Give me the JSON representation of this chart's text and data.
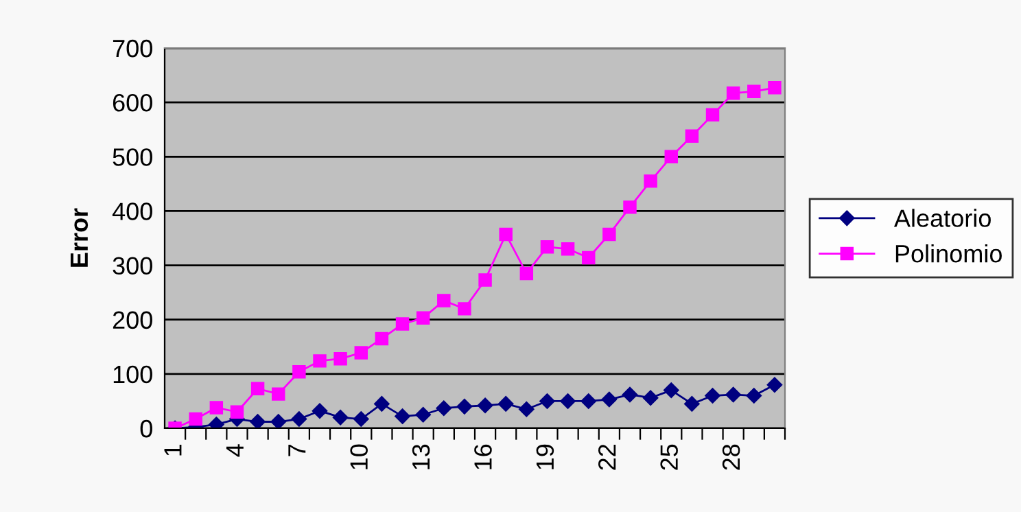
{
  "chart_data": {
    "type": "line",
    "ylabel": "Error",
    "categories": [
      "1",
      null,
      null,
      "4",
      null,
      null,
      "7",
      null,
      null,
      "10",
      null,
      null,
      "13",
      null,
      null,
      "16",
      null,
      null,
      "19",
      null,
      null,
      "22",
      null,
      null,
      "25",
      null,
      null,
      "28",
      null,
      null
    ],
    "series": [
      {
        "name": "Aleatorio",
        "color": "#000080",
        "marker": "diamond",
        "values": [
          0,
          2,
          7,
          17,
          12,
          12,
          17,
          32,
          20,
          17,
          45,
          22,
          25,
          37,
          40,
          42,
          45,
          35,
          50,
          50,
          50,
          53,
          62,
          56,
          70,
          45,
          60,
          62,
          60,
          80
        ]
      },
      {
        "name": "Polinomio",
        "color": "#ff00ff",
        "marker": "square",
        "values": [
          0,
          17,
          38,
          30,
          73,
          63,
          104,
          124,
          128,
          139,
          165,
          192,
          203,
          235,
          220,
          273,
          357,
          285,
          334,
          330,
          314,
          357,
          407,
          455,
          500,
          538,
          577,
          617,
          620,
          627
        ]
      }
    ],
    "ylim": [
      0,
      700
    ],
    "yticks": [
      0,
      100,
      200,
      300,
      400,
      500,
      600,
      700
    ],
    "grid": "y",
    "legend": "right"
  }
}
